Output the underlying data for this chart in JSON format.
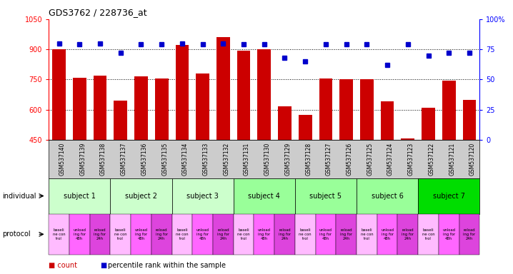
{
  "title": "GDS3762 / 228736_at",
  "samples": [
    "GSM537140",
    "GSM537139",
    "GSM537138",
    "GSM537137",
    "GSM537136",
    "GSM537135",
    "GSM537134",
    "GSM537133",
    "GSM537132",
    "GSM537131",
    "GSM537130",
    "GSM537129",
    "GSM537128",
    "GSM537127",
    "GSM537126",
    "GSM537125",
    "GSM537124",
    "GSM537123",
    "GSM537122",
    "GSM537121",
    "GSM537120"
  ],
  "counts": [
    900,
    760,
    770,
    645,
    765,
    755,
    920,
    780,
    960,
    895,
    900,
    615,
    575,
    755,
    750,
    750,
    640,
    455,
    610,
    745,
    650
  ],
  "percentiles": [
    80,
    79,
    80,
    72,
    79,
    79,
    80,
    79,
    80,
    79,
    79,
    68,
    65,
    79,
    79,
    79,
    62,
    79,
    70,
    72,
    72
  ],
  "ylim_left": [
    450,
    1050
  ],
  "ylim_right": [
    0,
    100
  ],
  "yticks_left": [
    450,
    600,
    750,
    900,
    1050
  ],
  "yticks_right": [
    0,
    25,
    50,
    75,
    100
  ],
  "bar_color": "#cc0000",
  "dot_color": "#0000cc",
  "subjects": [
    {
      "label": "subject 1",
      "start": 0,
      "end": 3,
      "color": "#ccffcc"
    },
    {
      "label": "subject 2",
      "start": 3,
      "end": 6,
      "color": "#ccffcc"
    },
    {
      "label": "subject 3",
      "start": 6,
      "end": 9,
      "color": "#ccffcc"
    },
    {
      "label": "subject 4",
      "start": 9,
      "end": 12,
      "color": "#99ff99"
    },
    {
      "label": "subject 5",
      "start": 12,
      "end": 15,
      "color": "#99ff99"
    },
    {
      "label": "subject 6",
      "start": 15,
      "end": 18,
      "color": "#99ff99"
    },
    {
      "label": "subject 7",
      "start": 18,
      "end": 21,
      "color": "#00dd00"
    }
  ],
  "protocols": [
    {
      "label": "baseli\nne con\ntrol",
      "color": "#ffbbff"
    },
    {
      "label": "unload\ning for\n48h",
      "color": "#ff66ff"
    },
    {
      "label": "reload\ning for\n24h",
      "color": "#dd44dd"
    },
    {
      "label": "baseli\nne con\ntrol",
      "color": "#ffbbff"
    },
    {
      "label": "unload\ning for\n48h",
      "color": "#ff66ff"
    },
    {
      "label": "reload\ning for\n24h",
      "color": "#dd44dd"
    },
    {
      "label": "baseli\nne con\ntrol",
      "color": "#ffbbff"
    },
    {
      "label": "unload\ning for\n48h",
      "color": "#ff66ff"
    },
    {
      "label": "reload\ning for\n24h",
      "color": "#dd44dd"
    },
    {
      "label": "baseli\nne con\ntrol",
      "color": "#ffbbff"
    },
    {
      "label": "unload\ning for\n48h",
      "color": "#ff66ff"
    },
    {
      "label": "reload\ning for\n24h",
      "color": "#dd44dd"
    },
    {
      "label": "baseli\nne con\ntrol",
      "color": "#ffbbff"
    },
    {
      "label": "unload\ning for\n48h",
      "color": "#ff66ff"
    },
    {
      "label": "reload\ning for\n24h",
      "color": "#dd44dd"
    },
    {
      "label": "baseli\nne con\ntrol",
      "color": "#ffbbff"
    },
    {
      "label": "unload\ning for\n48h",
      "color": "#ff66ff"
    },
    {
      "label": "reload\ning for\n24h",
      "color": "#dd44dd"
    },
    {
      "label": "baseli\nne con\ntrol",
      "color": "#ffbbff"
    },
    {
      "label": "unload\ning for\n48h",
      "color": "#ff66ff"
    },
    {
      "label": "reload\ning for\n24h",
      "color": "#dd44dd"
    }
  ],
  "bg_color": "#ffffff",
  "xtick_bg": "#cccccc",
  "gridline_vals": [
    600,
    750,
    900
  ]
}
